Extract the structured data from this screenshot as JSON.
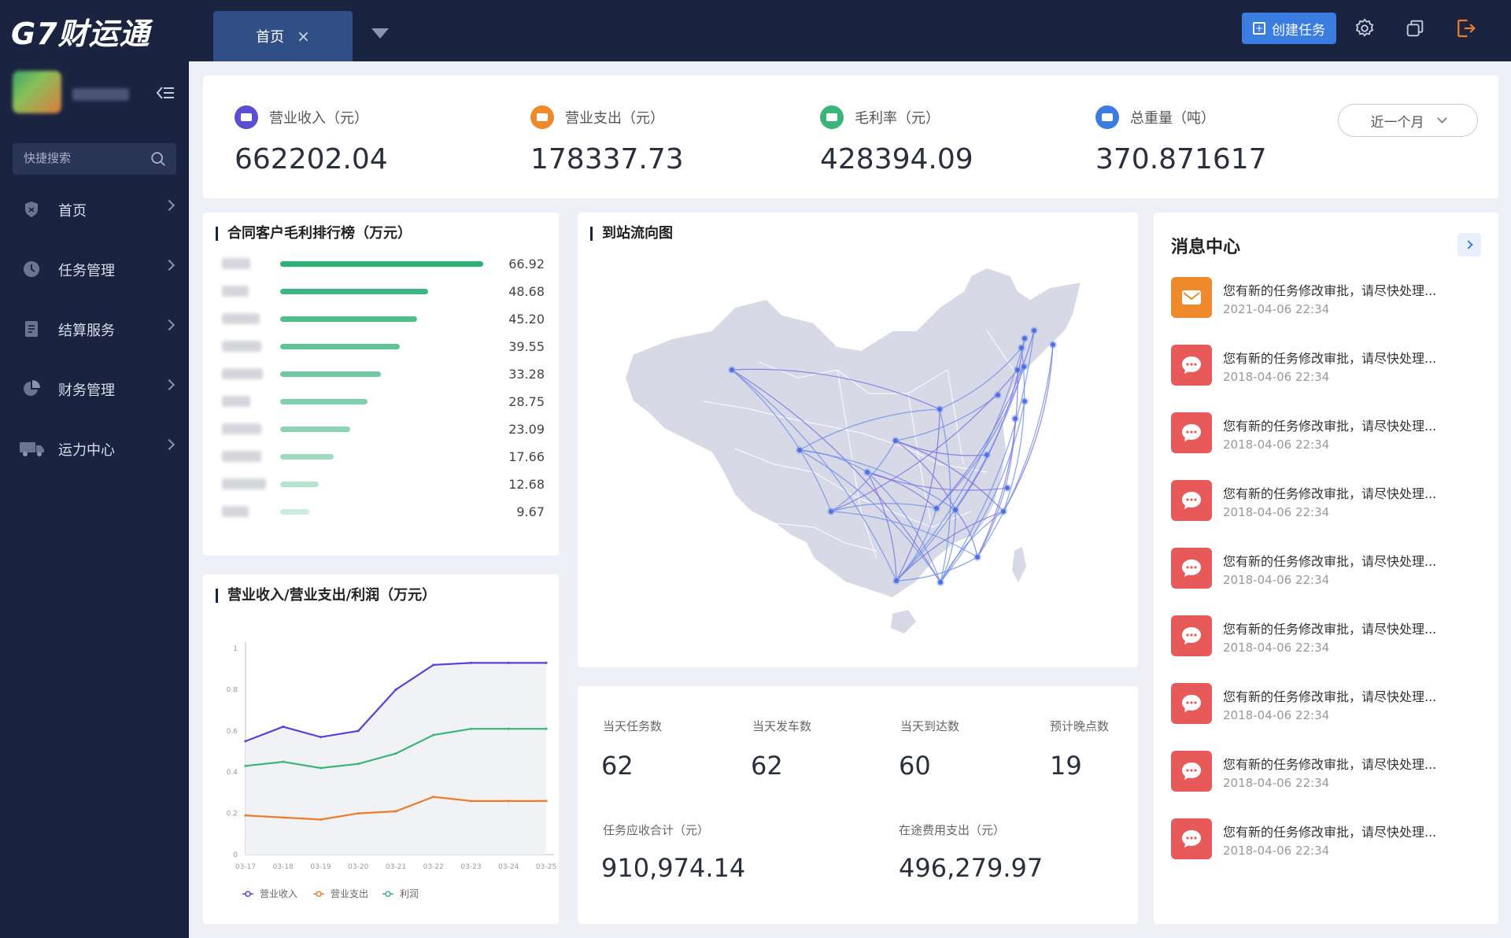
{
  "app": {
    "logo": "G7财运通"
  },
  "tabs": [
    {
      "label": "首页",
      "close": "×"
    }
  ],
  "header": {
    "create_task": "创建任务"
  },
  "sidebar": {
    "search_placeholder": "快捷搜索",
    "items": [
      {
        "label": "首页",
        "icon": "shield-icon"
      },
      {
        "label": "任务管理",
        "icon": "clock-icon"
      },
      {
        "label": "结算服务",
        "icon": "document-icon"
      },
      {
        "label": "财务管理",
        "icon": "pie-icon"
      },
      {
        "label": "运力中心",
        "icon": "truck-icon"
      }
    ]
  },
  "kpis": [
    {
      "label": "营业收入（元）",
      "value": "662202.04",
      "color": "#5b4fd1"
    },
    {
      "label": "营业支出（元）",
      "value": "178337.73",
      "color": "#ee8a2c"
    },
    {
      "label": "毛利率（元）",
      "value": "428394.09",
      "color": "#3bb47a"
    },
    {
      "label": "总重量（吨）",
      "value": "370.871617",
      "color": "#3b7ce0"
    }
  ],
  "period": {
    "selected": "近一个月"
  },
  "ranking": {
    "title": "合同客户毛利排行榜（万元）",
    "values": [
      "66.92",
      "48.68",
      "45.20",
      "39.55",
      "33.28",
      "28.75",
      "23.09",
      "17.66",
      "12.68",
      "9.67"
    ]
  },
  "flow_map": {
    "title": "到站流向图"
  },
  "stats": {
    "today_tasks_label": "当天任务数",
    "today_tasks": "62",
    "today_depart_label": "当天发车数",
    "today_depart": "62",
    "today_arrive_label": "当天到达数",
    "today_arrive": "60",
    "late_label": "预计晚点数",
    "late": "19",
    "receivable_label": "任务应收合计（元）",
    "receivable": "910,974.14",
    "expense_label": "在途费用支出（元）",
    "expense": "496,279.97"
  },
  "line_chart_title": "营业收入/营业支出/利润（万元）",
  "chart_data": {
    "type": "line",
    "title": "营业收入/营业支出/利润（万元）",
    "x": [
      "03-17",
      "03-18",
      "03-19",
      "03-20",
      "03-21",
      "03-22",
      "03-23",
      "03-24",
      "03-25"
    ],
    "ylim": [
      0,
      1
    ],
    "yticks": [
      "0",
      "0.2",
      "0.4",
      "0.6",
      "0.8",
      "1"
    ],
    "series": [
      {
        "name": "营业收入",
        "color": "#5b3fd9",
        "values": [
          0.55,
          0.62,
          0.57,
          0.6,
          0.8,
          0.92,
          0.93,
          0.93,
          0.93
        ]
      },
      {
        "name": "营业支出",
        "color": "#ee7b2a",
        "values": [
          0.19,
          0.18,
          0.17,
          0.2,
          0.21,
          0.28,
          0.26,
          0.26,
          0.26
        ]
      },
      {
        "name": "利润",
        "color": "#3bb47a",
        "values": [
          0.43,
          0.45,
          0.42,
          0.44,
          0.49,
          0.58,
          0.61,
          0.61,
          0.61
        ]
      }
    ],
    "legend": "bottom"
  },
  "messages": {
    "title": "消息中心",
    "items": [
      {
        "text": "您有新的任务修改审批，请尽快处理...",
        "time": "2021-04-06  22:34",
        "type": "mail",
        "color": "#ee8a2c"
      },
      {
        "text": "您有新的任务修改审批，请尽快处理...",
        "time": "2018-04-06  22:34",
        "type": "chat",
        "color": "#e85a5a"
      },
      {
        "text": "您有新的任务修改审批，请尽快处理...",
        "time": "2018-04-06  22:34",
        "type": "chat",
        "color": "#e85a5a"
      },
      {
        "text": "您有新的任务修改审批，请尽快处理...",
        "time": "2018-04-06  22:34",
        "type": "chat",
        "color": "#e85a5a"
      },
      {
        "text": "您有新的任务修改审批，请尽快处理...",
        "time": "2018-04-06  22:34",
        "type": "chat",
        "color": "#e85a5a"
      },
      {
        "text": "您有新的任务修改审批，请尽快处理...",
        "time": "2018-04-06  22:34",
        "type": "chat",
        "color": "#e85a5a"
      },
      {
        "text": "您有新的任务修改审批，请尽快处理...",
        "time": "2018-04-06  22:34",
        "type": "chat",
        "color": "#e85a5a"
      },
      {
        "text": "您有新的任务修改审批，请尽快处理...",
        "time": "2018-04-06  22:34",
        "type": "chat",
        "color": "#e85a5a"
      },
      {
        "text": "您有新的任务修改审批，请尽快处理...",
        "time": "2018-04-06  22:34",
        "type": "chat",
        "color": "#e85a5a"
      }
    ]
  }
}
